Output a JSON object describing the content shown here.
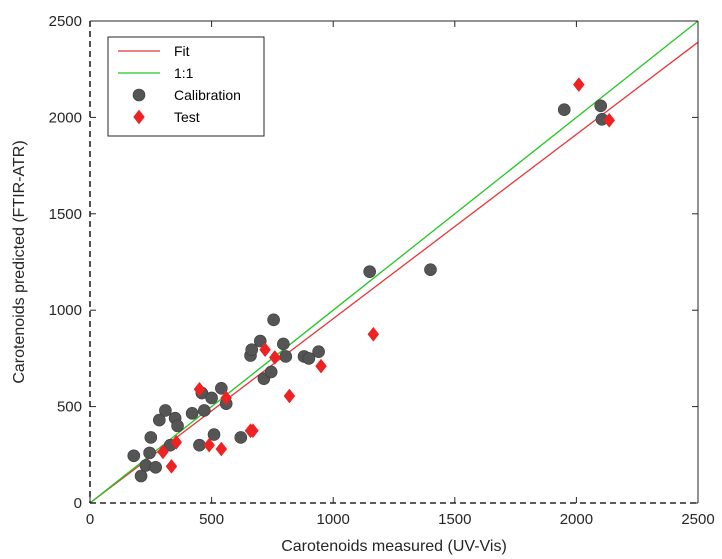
{
  "chart_data": {
    "type": "scatter",
    "xlabel": "Carotenoids measured (UV-Vis)",
    "ylabel": "Carotenoids predicted (FTIR-ATR)",
    "xlim": [
      0,
      2500
    ],
    "ylim": [
      0,
      2500
    ],
    "xticks": [
      0,
      500,
      1000,
      1500,
      2000,
      2500
    ],
    "yticks": [
      0,
      500,
      1000,
      1500,
      2000,
      2500
    ],
    "grid": false,
    "legend_position": "top-left",
    "series": [
      {
        "name": "Fit",
        "kind": "line",
        "color": "#e8353a",
        "x": [
          0,
          2500
        ],
        "y": [
          0,
          2390
        ]
      },
      {
        "name": "1:1",
        "kind": "line",
        "color": "#22c622",
        "x": [
          0,
          2500
        ],
        "y": [
          0,
          2500
        ]
      },
      {
        "name": "Calibration",
        "kind": "scatter",
        "marker": "circle",
        "color": "#555555",
        "points": [
          [
            180,
            245
          ],
          [
            210,
            140
          ],
          [
            230,
            195
          ],
          [
            245,
            260
          ],
          [
            250,
            340
          ],
          [
            270,
            185
          ],
          [
            285,
            430
          ],
          [
            310,
            480
          ],
          [
            330,
            300
          ],
          [
            350,
            440
          ],
          [
            360,
            400
          ],
          [
            420,
            465
          ],
          [
            450,
            300
          ],
          [
            460,
            570
          ],
          [
            470,
            480
          ],
          [
            500,
            545
          ],
          [
            510,
            355
          ],
          [
            540,
            595
          ],
          [
            560,
            515
          ],
          [
            620,
            340
          ],
          [
            660,
            765
          ],
          [
            665,
            795
          ],
          [
            700,
            840
          ],
          [
            715,
            645
          ],
          [
            745,
            680
          ],
          [
            755,
            950
          ],
          [
            795,
            825
          ],
          [
            805,
            760
          ],
          [
            880,
            760
          ],
          [
            900,
            750
          ],
          [
            940,
            785
          ],
          [
            1150,
            1200
          ],
          [
            1400,
            1210
          ],
          [
            1950,
            2040
          ],
          [
            2100,
            2060
          ],
          [
            2105,
            1990
          ]
        ]
      },
      {
        "name": "Test",
        "kind": "scatter",
        "marker": "diamond",
        "color": "#ee2222",
        "points": [
          [
            300,
            265
          ],
          [
            335,
            190
          ],
          [
            355,
            315
          ],
          [
            450,
            590
          ],
          [
            490,
            300
          ],
          [
            540,
            280
          ],
          [
            560,
            545
          ],
          [
            660,
            375
          ],
          [
            670,
            375
          ],
          [
            720,
            795
          ],
          [
            760,
            755
          ],
          [
            820,
            555
          ],
          [
            950,
            710
          ],
          [
            1165,
            875
          ],
          [
            2010,
            2170
          ],
          [
            2135,
            1985
          ]
        ]
      }
    ]
  }
}
